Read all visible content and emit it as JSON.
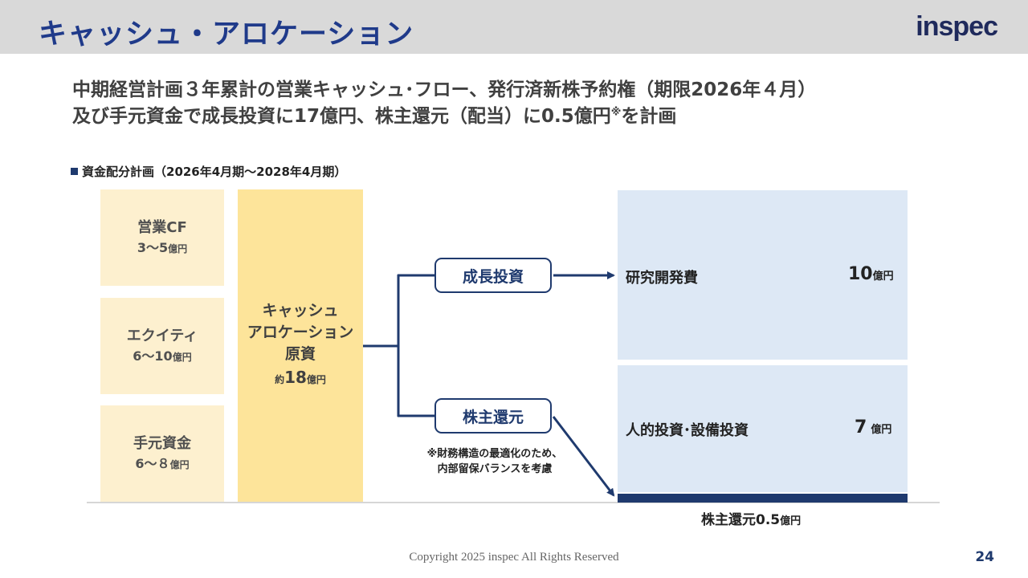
{
  "header": {
    "title": "キャッシュ・アロケーション",
    "logo": "inspec"
  },
  "lead": {
    "line1": "中期経営計画３年累計の営業キャッシュ･フロー、発行済新株予約権（期限2026年４月）",
    "line2_pre": "及び手元資金で成長投資に17億円、株主還元（配当）に0.5億円",
    "line2_mark": "※",
    "line2_post": "を計画"
  },
  "section_label": "資金配分計画（2026年4月期～2028年4月期）",
  "sources": [
    {
      "name": "営業CF",
      "value": "3～5",
      "unit": "億円"
    },
    {
      "name": "エクイティ",
      "value": "6～10",
      "unit": "億円"
    },
    {
      "name": "手元資金",
      "value": "6～８",
      "unit": "億円"
    }
  ],
  "pool": {
    "line1": "キャッシュ",
    "line2": "アロケーション",
    "line3": "原資",
    "prefix": "約",
    "value": "18",
    "unit": "億円"
  },
  "growth": {
    "label": "成長投資"
  },
  "shareholder": {
    "label": "株主還元",
    "note_line1": "※財務構造の最適化のため、",
    "note_line2": "内部留保バランスを考慮"
  },
  "allocations": [
    {
      "label": "研究開発費",
      "value": "10",
      "unit": "億円"
    },
    {
      "label": "人的投資･設備投資",
      "value": "7",
      "unit": "億円"
    },
    {
      "label": "株主還元",
      "value": "0.5",
      "unit": "億円"
    }
  ],
  "colors": {
    "title": "#1f3a8a",
    "navy": "#1f3a6e",
    "source_fill": "#fdf0cf",
    "pool_fill": "#fde49a",
    "alloc_fill": "#dde8f5"
  },
  "footer": {
    "copyright": "Copyright 2025 inspec All Rights Reserved",
    "page": "24"
  }
}
